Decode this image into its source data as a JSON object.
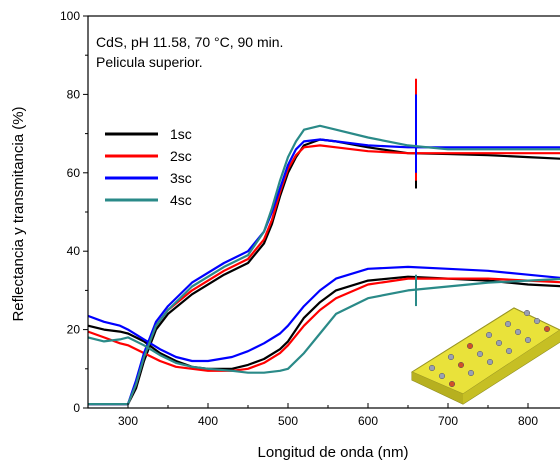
{
  "chart_data": {
    "type": "line",
    "title": "",
    "xlabel": "Longitud de onda (nm)",
    "ylabel": "Reflectancia y transmitancia (%)",
    "xlim": [
      250,
      850
    ],
    "ylim": [
      0,
      100
    ],
    "x_ticks": [
      "300",
      "400",
      "500",
      "600",
      "700",
      "800"
    ],
    "y_ticks": [
      "0",
      "20",
      "40",
      "60",
      "80",
      "100"
    ],
    "annotations": [
      "CdS, pH 11.58, 70 °C, 90 min.",
      "Pelicula superior."
    ],
    "grid": false,
    "legend_position": "left",
    "series": [
      {
        "name": "1sc",
        "color": "#000000",
        "transmittance": [
          [
            250,
            1
          ],
          [
            280,
            1
          ],
          [
            300,
            1
          ],
          [
            310,
            5
          ],
          [
            320,
            12
          ],
          [
            335,
            20
          ],
          [
            350,
            24
          ],
          [
            380,
            29
          ],
          [
            420,
            34
          ],
          [
            450,
            37
          ],
          [
            470,
            42
          ],
          [
            480,
            47
          ],
          [
            490,
            54
          ],
          [
            500,
            60
          ],
          [
            510,
            64
          ],
          [
            520,
            67
          ],
          [
            540,
            68.5
          ],
          [
            560,
            68
          ],
          [
            600,
            66.5
          ],
          [
            650,
            65
          ],
          [
            700,
            64.8
          ],
          [
            750,
            64.5
          ],
          [
            800,
            64
          ],
          [
            850,
            63.5
          ]
        ],
        "reflectance": [
          [
            250,
            21
          ],
          [
            270,
            20
          ],
          [
            290,
            19.5
          ],
          [
            300,
            19
          ],
          [
            320,
            17
          ],
          [
            340,
            14
          ],
          [
            360,
            12
          ],
          [
            380,
            10.5
          ],
          [
            400,
            10
          ],
          [
            430,
            10
          ],
          [
            450,
            11
          ],
          [
            470,
            12.5
          ],
          [
            490,
            15
          ],
          [
            500,
            17
          ],
          [
            520,
            23
          ],
          [
            540,
            27
          ],
          [
            560,
            30
          ],
          [
            600,
            32.5
          ],
          [
            650,
            33.5
          ],
          [
            700,
            33
          ],
          [
            750,
            32.5
          ],
          [
            800,
            31.5
          ],
          [
            850,
            31
          ]
        ],
        "spike": [
          660,
          56,
          82
        ]
      },
      {
        "name": "2sc",
        "color": "#ff0000",
        "transmittance": [
          [
            250,
            1
          ],
          [
            280,
            1
          ],
          [
            300,
            1
          ],
          [
            310,
            6
          ],
          [
            320,
            13
          ],
          [
            335,
            21
          ],
          [
            350,
            25
          ],
          [
            380,
            30
          ],
          [
            420,
            35
          ],
          [
            450,
            38
          ],
          [
            470,
            43
          ],
          [
            480,
            48
          ],
          [
            490,
            55
          ],
          [
            500,
            61
          ],
          [
            510,
            64.5
          ],
          [
            520,
            66.5
          ],
          [
            540,
            67
          ],
          [
            560,
            66.5
          ],
          [
            600,
            65.5
          ],
          [
            650,
            65
          ],
          [
            700,
            65
          ],
          [
            750,
            65
          ],
          [
            800,
            65
          ],
          [
            850,
            65
          ]
        ],
        "reflectance": [
          [
            250,
            19.5
          ],
          [
            270,
            18
          ],
          [
            290,
            16.5
          ],
          [
            300,
            16
          ],
          [
            320,
            14
          ],
          [
            340,
            12
          ],
          [
            360,
            10.5
          ],
          [
            380,
            10
          ],
          [
            400,
            9.5
          ],
          [
            430,
            9.5
          ],
          [
            450,
            10
          ],
          [
            470,
            11.5
          ],
          [
            490,
            14
          ],
          [
            500,
            16
          ],
          [
            520,
            21
          ],
          [
            540,
            25
          ],
          [
            560,
            28
          ],
          [
            600,
            31.5
          ],
          [
            650,
            33
          ],
          [
            700,
            33
          ],
          [
            750,
            33
          ],
          [
            800,
            32.5
          ],
          [
            850,
            32
          ]
        ],
        "spike": [
          660,
          58,
          84
        ]
      },
      {
        "name": "3sc",
        "color": "#0000ff",
        "transmittance": [
          [
            250,
            1
          ],
          [
            280,
            1
          ],
          [
            300,
            1
          ],
          [
            310,
            7
          ],
          [
            320,
            14
          ],
          [
            335,
            22
          ],
          [
            350,
            26
          ],
          [
            380,
            32
          ],
          [
            420,
            37
          ],
          [
            450,
            40
          ],
          [
            470,
            45
          ],
          [
            480,
            50
          ],
          [
            490,
            56
          ],
          [
            500,
            62
          ],
          [
            510,
            66
          ],
          [
            520,
            68
          ],
          [
            540,
            68.5
          ],
          [
            560,
            68
          ],
          [
            600,
            67
          ],
          [
            650,
            66.5
          ],
          [
            700,
            66.5
          ],
          [
            750,
            66.5
          ],
          [
            800,
            66.5
          ],
          [
            850,
            66.5
          ]
        ],
        "reflectance": [
          [
            250,
            23.5
          ],
          [
            270,
            22
          ],
          [
            290,
            21
          ],
          [
            300,
            20
          ],
          [
            320,
            17.5
          ],
          [
            340,
            15
          ],
          [
            360,
            13
          ],
          [
            380,
            12
          ],
          [
            400,
            12
          ],
          [
            430,
            13
          ],
          [
            450,
            14.5
          ],
          [
            470,
            16.5
          ],
          [
            490,
            19
          ],
          [
            500,
            21
          ],
          [
            520,
            26
          ],
          [
            540,
            30
          ],
          [
            560,
            33
          ],
          [
            600,
            35.5
          ],
          [
            650,
            36
          ],
          [
            700,
            35.5
          ],
          [
            750,
            35
          ],
          [
            800,
            34
          ],
          [
            850,
            33
          ]
        ],
        "spike": [
          660,
          60,
          80
        ]
      },
      {
        "name": "4sc",
        "color": "#2a8a88",
        "transmittance": [
          [
            250,
            1
          ],
          [
            280,
            1
          ],
          [
            300,
            1
          ],
          [
            310,
            6
          ],
          [
            320,
            13
          ],
          [
            335,
            21
          ],
          [
            350,
            25
          ],
          [
            380,
            31
          ],
          [
            420,
            36
          ],
          [
            450,
            39
          ],
          [
            470,
            45
          ],
          [
            480,
            51
          ],
          [
            490,
            58
          ],
          [
            500,
            64
          ],
          [
            510,
            68
          ],
          [
            520,
            71
          ],
          [
            540,
            72
          ],
          [
            560,
            71
          ],
          [
            600,
            69
          ],
          [
            650,
            67
          ],
          [
            700,
            66
          ],
          [
            750,
            66
          ],
          [
            800,
            66
          ],
          [
            850,
            66
          ]
        ],
        "reflectance": [
          [
            250,
            18
          ],
          [
            270,
            17
          ],
          [
            290,
            17.5
          ],
          [
            300,
            18
          ],
          [
            320,
            16
          ],
          [
            340,
            13.5
          ],
          [
            360,
            11.5
          ],
          [
            380,
            10.5
          ],
          [
            400,
            10
          ],
          [
            430,
            9.5
          ],
          [
            450,
            9
          ],
          [
            470,
            9
          ],
          [
            490,
            9.5
          ],
          [
            500,
            10
          ],
          [
            520,
            14
          ],
          [
            540,
            19
          ],
          [
            560,
            24
          ],
          [
            600,
            28
          ],
          [
            650,
            30
          ],
          [
            700,
            31
          ],
          [
            750,
            32
          ],
          [
            800,
            32.5
          ],
          [
            850,
            33
          ]
        ],
        "spike": [
          660,
          26,
          34
        ]
      }
    ]
  }
}
